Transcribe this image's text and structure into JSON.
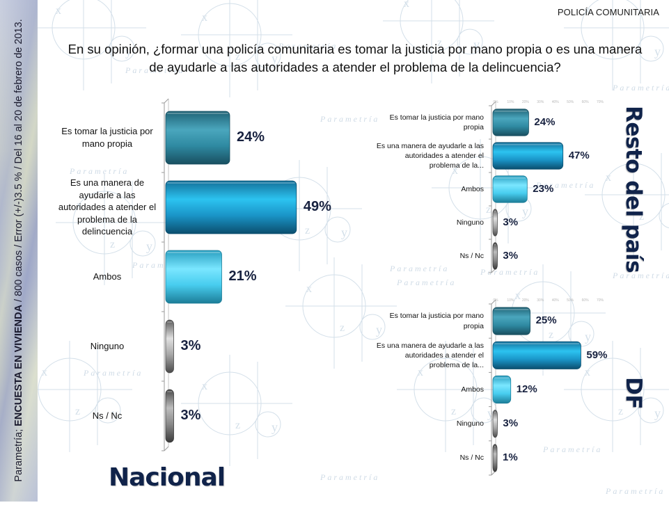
{
  "header": {
    "section_tag": "POLICÍA COMUNITARIA",
    "question": "En su opinión, ¿formar una policía comunitaria es tomar la justicia por mano propia o es una manera de ayudarle a las autoridades a atender el problema de la delincuencia?"
  },
  "side_caption": {
    "prefix": "Parametría; ",
    "bold": "ENCUESTA EN VIVIENDA",
    "suffix": " / 800 casos / Error (+/-)3.5 % / Del 16 al 20 de febrero de 2013."
  },
  "watermark": "Parametría",
  "colors": {
    "dark_teal": "#2e7f95",
    "blue": "#1a8fc0",
    "light_cyan": "#45c8ea",
    "gray": "#8a8a8a",
    "value_text": "#17213f",
    "title_text": "#10234a"
  },
  "chart_data": [
    {
      "type": "bar",
      "orientation": "horizontal",
      "title": "Nacional",
      "categories": [
        "Es tomar la justicia por mano propia",
        "Es una manera de ayudarle a las autoridades a atender el problema de la delincuencia",
        "Ambos",
        "Ninguno",
        "Ns / Nc"
      ],
      "values": [
        24,
        49,
        21,
        3,
        3
      ],
      "value_labels": [
        "24%",
        "49%",
        "21%",
        "3%",
        "3%"
      ],
      "unit": "%",
      "xlim": [
        0,
        60
      ],
      "grid": false
    },
    {
      "type": "bar",
      "orientation": "horizontal",
      "title": "Resto del país",
      "categories": [
        "Es tomar la justicia por mano propia",
        "Es una manera de ayudarle a las autoridades a atender el problema de la...",
        "Ambos",
        "Ninguno",
        "Ns / Nc"
      ],
      "values": [
        24,
        47,
        23,
        3,
        3
      ],
      "value_labels": [
        "24%",
        "47%",
        "23%",
        "3%",
        "3%"
      ],
      "unit": "%",
      "xlim": [
        0,
        70
      ],
      "x_ticks": [
        "0%",
        "10%",
        "20%",
        "30%",
        "40%",
        "50%",
        "60%",
        "70%"
      ],
      "grid": false
    },
    {
      "type": "bar",
      "orientation": "horizontal",
      "title": "DF",
      "categories": [
        "Es tomar la justicia por mano propia",
        "Es una manera de ayudarle a las autoridades a atender el problema de la...",
        "Ambos",
        "Ninguno",
        "Ns / Nc"
      ],
      "values": [
        25,
        59,
        12,
        3,
        1
      ],
      "value_labels": [
        "25%",
        "59%",
        "12%",
        "3%",
        "1%"
      ],
      "unit": "%",
      "xlim": [
        0,
        70
      ],
      "x_ticks": [
        "0%",
        "10%",
        "20%",
        "30%",
        "40%",
        "50%",
        "60%",
        "70%"
      ],
      "grid": false
    }
  ]
}
